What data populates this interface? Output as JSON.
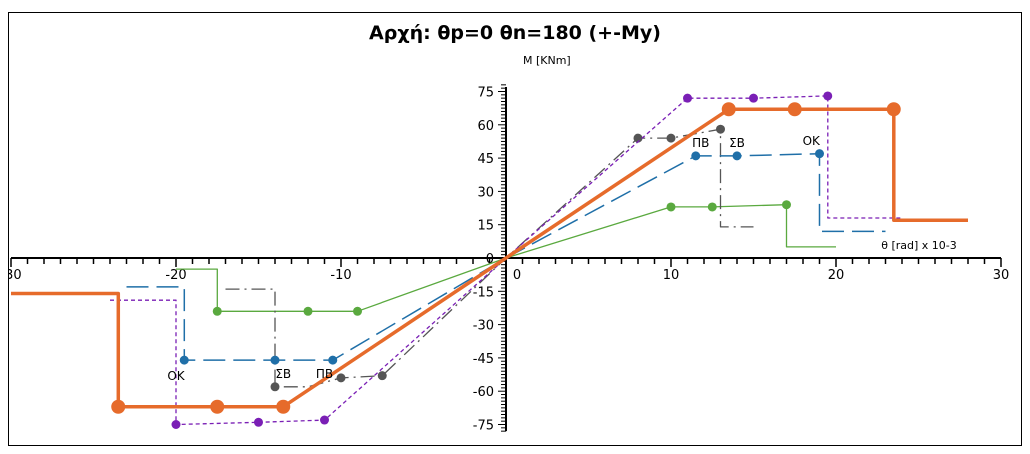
{
  "chart_data": {
    "type": "line",
    "title": "Αρχή: θp=0 θn=180 (+-My)",
    "xlabel": "θ [rad] x 10-3",
    "ylabel": "M [KNm]",
    "xlim": [
      -30,
      30
    ],
    "ylim": [
      -80,
      80
    ],
    "x_ticks": [
      -30,
      -20,
      -10,
      0,
      10,
      20,
      30
    ],
    "x_tick_labels": [
      "-30",
      "-20",
      "-10",
      "0",
      "10",
      "20",
      "30"
    ],
    "y_ticks": [
      75,
      60,
      45,
      30,
      15,
      0,
      -15,
      -30,
      -45,
      -60,
      -75
    ],
    "y_tick_labels": [
      "75",
      "60",
      "45",
      "30",
      "15",
      "0",
      "-15",
      "-30",
      "-45",
      "-60",
      "-75"
    ],
    "grid": false,
    "series": [
      {
        "color": "#e66b2b",
        "style": "solid-thick",
        "points": [
          [
            -30,
            -16
          ],
          [
            -23.5,
            -16
          ],
          [
            -23.5,
            -67
          ],
          [
            -17.5,
            -67
          ],
          [
            -13.5,
            -67
          ],
          [
            0,
            0
          ],
          [
            13.5,
            67
          ],
          [
            17.5,
            67
          ],
          [
            23.5,
            67
          ],
          [
            23.5,
            17
          ],
          [
            28,
            17
          ]
        ],
        "markers": [
          [
            -23.5,
            -67
          ],
          [
            -17.5,
            -67
          ],
          [
            -13.5,
            -67
          ],
          [
            13.5,
            67
          ],
          [
            17.5,
            67
          ],
          [
            23.5,
            67
          ]
        ]
      },
      {
        "color": "#7a1fb5",
        "style": "dotted",
        "points": [
          [
            -24,
            -19
          ],
          [
            -20,
            -19
          ],
          [
            -20,
            -75
          ],
          [
            -15,
            -74
          ],
          [
            -11,
            -73
          ],
          [
            0,
            0
          ],
          [
            11,
            72
          ],
          [
            15,
            72
          ],
          [
            19.5,
            73
          ],
          [
            19.5,
            18
          ],
          [
            24,
            18
          ]
        ],
        "markers": [
          [
            -20,
            -75
          ],
          [
            -15,
            -74
          ],
          [
            -11,
            -73
          ],
          [
            11,
            72
          ],
          [
            15,
            72
          ],
          [
            19.5,
            73
          ]
        ]
      },
      {
        "color": "#1f6fa8",
        "style": "long-dash",
        "points": [
          [
            -23,
            -13
          ],
          [
            -19.5,
            -13
          ],
          [
            -19.5,
            -46
          ],
          [
            -14,
            -46
          ],
          [
            -10.5,
            -46
          ],
          [
            0,
            0
          ],
          [
            11.5,
            46
          ],
          [
            14,
            46
          ],
          [
            19,
            47
          ],
          [
            19,
            12
          ],
          [
            23,
            12
          ]
        ],
        "markers": [
          [
            -19.5,
            -46
          ],
          [
            -14,
            -46
          ],
          [
            -10.5,
            -46
          ],
          [
            11.5,
            46
          ],
          [
            14,
            46
          ],
          [
            19,
            47
          ]
        ]
      },
      {
        "color": "#555555",
        "style": "dash-dot",
        "points": [
          [
            -17,
            -14
          ],
          [
            -14,
            -14
          ],
          [
            -14,
            -58
          ],
          [
            -12,
            -58
          ],
          [
            -10,
            -54
          ],
          [
            -7.5,
            -53
          ],
          [
            0,
            0
          ],
          [
            8,
            54
          ],
          [
            10,
            54
          ],
          [
            13,
            58
          ],
          [
            13,
            14
          ],
          [
            15,
            14
          ]
        ],
        "markers": [
          [
            -14,
            -58
          ],
          [
            -10,
            -54
          ],
          [
            -7.5,
            -53
          ],
          [
            8,
            54
          ],
          [
            10,
            54
          ],
          [
            13,
            58
          ]
        ]
      },
      {
        "color": "#5aa93f",
        "style": "solid-thin",
        "points": [
          [
            -20,
            -5
          ],
          [
            -17.5,
            -5
          ],
          [
            -17.5,
            -24
          ],
          [
            -12,
            -24
          ],
          [
            -9,
            -24
          ],
          [
            0,
            0
          ],
          [
            10,
            23
          ],
          [
            12.5,
            23
          ],
          [
            17,
            24
          ],
          [
            17,
            5
          ],
          [
            20,
            5
          ]
        ],
        "markers": [
          [
            -17.5,
            -24
          ],
          [
            -12,
            -24
          ],
          [
            -9,
            -24
          ],
          [
            10,
            23
          ],
          [
            12.5,
            23
          ],
          [
            17,
            24
          ]
        ]
      }
    ],
    "annotations": [
      {
        "text": "ΠΒ",
        "x": 11.8,
        "y": 50
      },
      {
        "text": "ΣΒ",
        "x": 14,
        "y": 50
      },
      {
        "text": "ΟΚ",
        "x": 18.5,
        "y": 51
      },
      {
        "text": "ΟΚ",
        "x": -20,
        "y": -55
      },
      {
        "text": "ΣΒ",
        "x": -13.5,
        "y": -54
      },
      {
        "text": "ΠΒ",
        "x": -11,
        "y": -54
      }
    ]
  }
}
